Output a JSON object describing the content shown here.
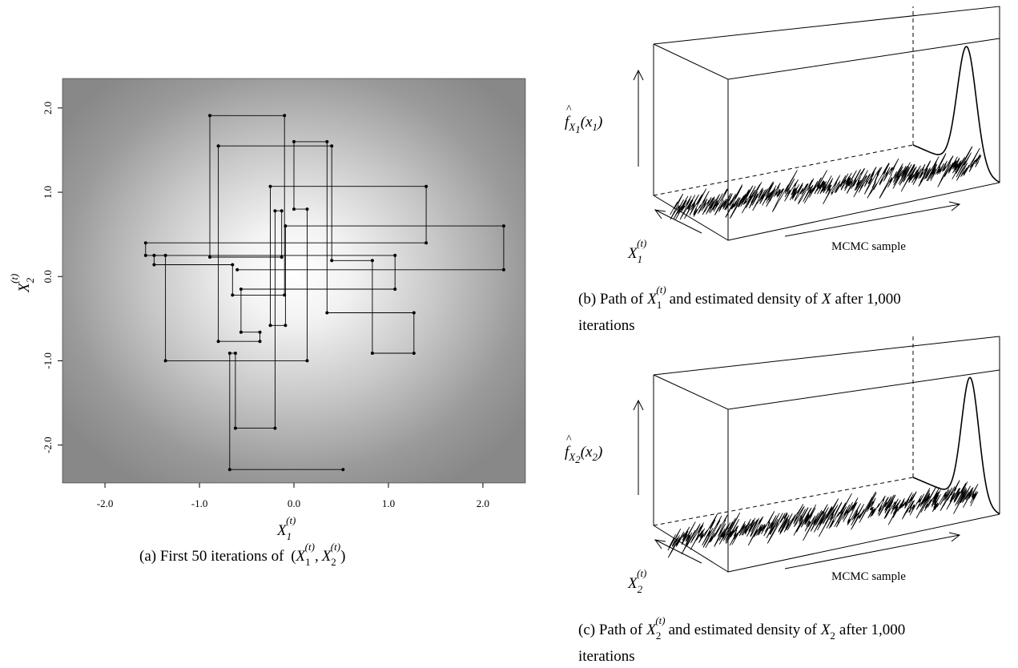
{
  "panel_a": {
    "caption": "(a) First 50 iterations of",
    "caption_math": {
      "open": "(",
      "var": "X",
      "sub1": "1",
      "sub2": "2",
      "sup": "(t)",
      "comma": ",",
      "close": ")"
    },
    "xlabel": {
      "var": "X",
      "sub": "1",
      "sup": "(t)"
    },
    "ylabel": {
      "var": "X",
      "sub": "2",
      "sup": "(t)"
    }
  },
  "panel_b": {
    "caption_line1_pre": "(b) Path of",
    "caption_line1_mid": "and estimated density of",
    "caption_line1_var": "X",
    "caption_line1_post": "after 1,000",
    "caption_line2": "iterations",
    "axis_label": "MCMC sample",
    "density_label": {
      "f": "f",
      "sub": "X",
      "subsub": "1",
      "arg": "(x",
      "argsub": "1",
      "close": ")"
    },
    "path_label": {
      "var": "X",
      "sub": "1",
      "sup": "(t)"
    },
    "path_var": {
      "var": "X",
      "sub": "1",
      "sup": "(t)"
    }
  },
  "panel_c": {
    "caption_line1_pre": "(c) Path of",
    "caption_line1_mid": "and estimated density of",
    "caption_line1_var": "X",
    "caption_line1_varsub": "2",
    "caption_line1_post": "after 1,000",
    "caption_line2": "iterations",
    "axis_label": "MCMC sample",
    "density_label": {
      "f": "f",
      "sub": "X",
      "subsub": "2",
      "arg": "(x",
      "argsub": "2",
      "close": ")"
    },
    "path_label": {
      "var": "X",
      "sub": "2",
      "sup": "(t)"
    },
    "path_var": {
      "var": "X",
      "sub": "2",
      "sup": "(t)"
    }
  },
  "chart_data": [
    {
      "type": "scatter",
      "title": "",
      "xlabel": "X_1^(t)",
      "ylabel": "X_2^(t)",
      "xlim": [
        -2.45,
        2.45
      ],
      "ylim": [
        -2.45,
        2.35
      ],
      "x_ticks": [
        -2.0,
        -1.0,
        0.0,
        1.0,
        2.0
      ],
      "x_tick_labels": [
        "-2.0",
        "-1.0",
        "0.0",
        "1.0",
        "2.0"
      ],
      "y_ticks": [
        -2.0,
        -1.0,
        0.0,
        1.0,
        2.0
      ],
      "y_tick_labels": [
        "-2.0",
        "-1.0",
        "0.0",
        "1.0",
        "2.0"
      ],
      "background": "bivariate normal density shading (light center, darker edges)",
      "path_style": "Gibbs staircase (horizontal then vertical moves)",
      "points": [
        [
          0.52,
          -2.29
        ],
        [
          -0.68,
          -2.29
        ],
        [
          -0.68,
          -0.91
        ],
        [
          -0.62,
          -0.91
        ],
        [
          -0.62,
          -1.8
        ],
        [
          -0.2,
          -1.8
        ],
        [
          -0.2,
          0.78
        ],
        [
          -0.13,
          0.78
        ],
        [
          -0.13,
          0.23
        ],
        [
          -0.89,
          0.23
        ],
        [
          -0.89,
          1.91
        ],
        [
          -0.1,
          1.91
        ],
        [
          -0.1,
          -0.22
        ],
        [
          -0.65,
          -0.22
        ],
        [
          -0.65,
          0.14
        ],
        [
          -1.48,
          0.14
        ],
        [
          -1.48,
          0.25
        ],
        [
          -1.36,
          0.25
        ],
        [
          -1.36,
          -1.0
        ],
        [
          0.14,
          -1.0
        ],
        [
          0.14,
          0.8
        ],
        [
          0.0,
          0.8
        ],
        [
          0.0,
          1.6
        ],
        [
          0.35,
          1.6
        ],
        [
          0.35,
          -0.43
        ],
        [
          1.27,
          -0.43
        ],
        [
          1.27,
          -0.91
        ],
        [
          0.83,
          -0.91
        ],
        [
          0.83,
          0.19
        ],
        [
          0.4,
          0.19
        ],
        [
          0.4,
          1.55
        ],
        [
          -0.8,
          1.55
        ],
        [
          -0.8,
          -0.77
        ],
        [
          -0.36,
          -0.77
        ],
        [
          -0.36,
          -0.66
        ],
        [
          -0.56,
          -0.66
        ],
        [
          -0.56,
          -0.15
        ],
        [
          1.07,
          -0.15
        ],
        [
          1.07,
          0.25
        ],
        [
          -1.57,
          0.25
        ],
        [
          -1.57,
          0.4
        ],
        [
          1.4,
          0.4
        ],
        [
          1.4,
          1.07
        ],
        [
          -0.25,
          1.07
        ],
        [
          -0.25,
          -0.58
        ],
        [
          -0.09,
          -0.58
        ],
        [
          -0.09,
          0.6
        ],
        [
          2.22,
          0.6
        ],
        [
          2.22,
          0.08
        ],
        [
          -0.6,
          0.08
        ]
      ]
    },
    {
      "type": "line",
      "title": "",
      "subtype": "3d-perspective trace plot with marginal density",
      "xlabel": "MCMC sample",
      "ylabel": "X_1^(t)",
      "zlabel": "f_X1(x1)",
      "n_iterations": 1000,
      "density_peak_position": 0.62,
      "density_width": 0.11
    },
    {
      "type": "line",
      "title": "",
      "subtype": "3d-perspective trace plot with marginal density",
      "xlabel": "MCMC sample",
      "ylabel": "X_2^(t)",
      "zlabel": "f_X2(x2)",
      "n_iterations": 1000,
      "density_peak_position": 0.66,
      "density_width": 0.1
    }
  ]
}
